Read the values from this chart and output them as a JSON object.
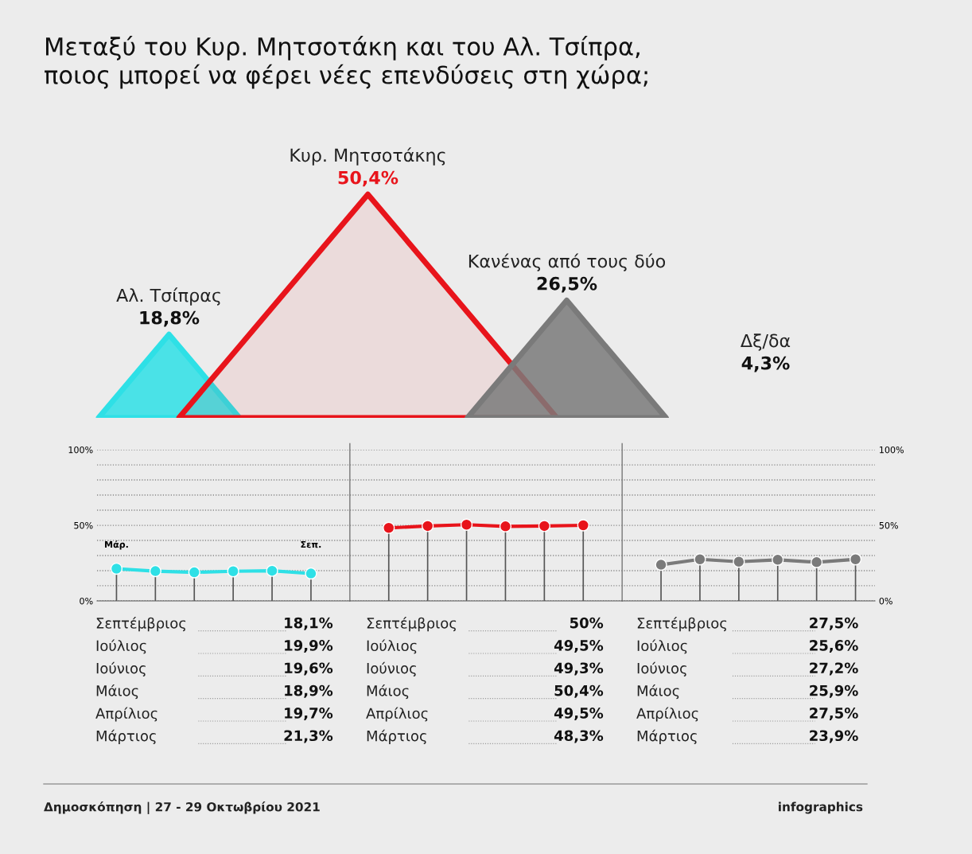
{
  "chart_data": [
    {
      "type": "other",
      "title": "Μεταξύ του Κυρ. Μητσοτάκη και του Αλ. Τσίπρα,\nποιος μπορεί να φέρει νέες επενδύσεις στη χώρα;",
      "categories": [
        "Αλ. Τσίπρας",
        "Κυρ. Μητσοτάκης",
        "Κανένας από τους δύο",
        "Δξ/δα"
      ],
      "values": [
        18.8,
        50.4,
        26.5,
        4.3
      ],
      "value_labels": [
        "18,8%",
        "50,4%",
        "26,5%",
        "4,3%"
      ],
      "colors": [
        "#2ee0e6",
        "#e8141b",
        "#7a7a7a",
        null
      ],
      "annotations": [
        "Δημοσκόπηση | 27 - 29 Οκτωβρίου 2021",
        "infographics"
      ]
    },
    {
      "type": "line",
      "categories": [
        "Μάρ.",
        null,
        null,
        null,
        null,
        "Σεπ.",
        null,
        null,
        null,
        null,
        null,
        null,
        null,
        null,
        null,
        null,
        null,
        null,
        null,
        null
      ],
      "series": [
        {
          "color": "#2ee0e6",
          "values": [
            21.3,
            19.7,
            18.9,
            19.6,
            19.9,
            18.1,
            null,
            null,
            null,
            null,
            null,
            null,
            null,
            null,
            null,
            null,
            null,
            null,
            null,
            null
          ]
        },
        {
          "color": "#e8141b",
          "values": [
            null,
            null,
            null,
            null,
            null,
            null,
            null,
            48.3,
            49.5,
            50.4,
            49.3,
            49.5,
            50,
            null,
            null,
            null,
            null,
            null,
            null,
            null
          ]
        },
        {
          "color": "#7a7a7a",
          "values": [
            null,
            null,
            null,
            null,
            null,
            null,
            null,
            null,
            null,
            null,
            null,
            null,
            null,
            null,
            23.9,
            27.5,
            25.9,
            27.2,
            25.6,
            27.5
          ]
        }
      ],
      "ylim": [
        0,
        100
      ],
      "yticks": [
        {
          "value": 0,
          "label": "0%"
        },
        {
          "value": 10,
          "label": null
        },
        {
          "value": 20,
          "label": null
        },
        {
          "value": 30,
          "label": null
        },
        {
          "value": 40,
          "label": null
        },
        {
          "value": 50,
          "label": "50%"
        },
        {
          "value": 60,
          "label": null
        },
        {
          "value": 70,
          "label": null
        },
        {
          "value": 80,
          "label": null
        },
        {
          "value": 90,
          "label": null
        },
        {
          "value": 100,
          "label": "100%"
        }
      ],
      "y2lim": [
        0,
        100
      ],
      "y2ticks": [
        {
          "value": 0,
          "label": "0%"
        },
        {
          "value": 10,
          "label": null
        },
        {
          "value": 20,
          "label": null
        },
        {
          "value": 30,
          "label": null
        },
        {
          "value": 40,
          "label": null
        },
        {
          "value": 50,
          "label": "50%"
        },
        {
          "value": 60,
          "label": null
        },
        {
          "value": 70,
          "label": null
        },
        {
          "value": 80,
          "label": null
        },
        {
          "value": 90,
          "label": null
        },
        {
          "value": 100,
          "label": "100%"
        }
      ],
      "grid": true,
      "marker": "circle"
    },
    {
      "type": "other",
      "categories": [
        "Σεπτέμβριος",
        "Ιούλιος",
        "Ιούνιος",
        "Μάιος",
        "Απρίλιος",
        "Μάρτιος"
      ],
      "annotations": [
        "18,1%",
        "19,9%",
        "19,6%",
        "18,9%",
        "19,7%",
        "21,3%"
      ]
    },
    {
      "type": "other",
      "categories": [
        "Σεπτέμβριος",
        "Ιούλιος",
        "Ιούνιος",
        "Μάιος",
        "Απρίλιος",
        "Μάρτιος"
      ],
      "annotations": [
        "50%",
        "49,5%",
        "49,3%",
        "50,4%",
        "49,5%",
        "48,3%"
      ]
    },
    {
      "type": "other",
      "categories": [
        "Σεπτέμβριος",
        "Ιούλιος",
        "Ιούνιος",
        "Μάιος",
        "Απρίλιος",
        "Μάρτιος"
      ],
      "annotations": [
        "27,5%",
        "25,6%",
        "27,2%",
        "25,9%",
        "27,5%",
        "23,9%"
      ]
    }
  ]
}
